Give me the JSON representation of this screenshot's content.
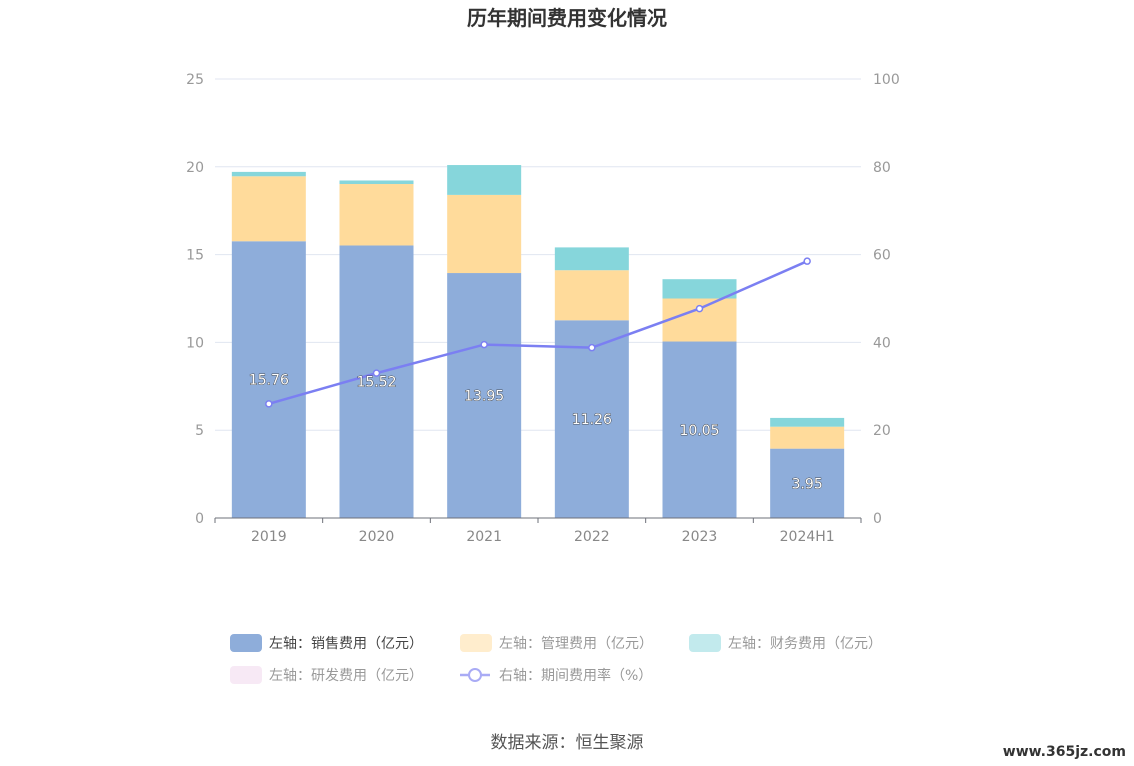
{
  "chart_data": {
    "type": "bar",
    "title": "历年期间费用变化情况",
    "categories": [
      "2019",
      "2020",
      "2021",
      "2022",
      "2023",
      "2024H1"
    ],
    "y_left": {
      "ylim": [
        0,
        25
      ],
      "ticks": [
        0,
        5,
        10,
        15,
        20,
        25
      ]
    },
    "y_right": {
      "ylim": [
        0,
        100
      ],
      "ticks": [
        0,
        20,
        40,
        60,
        80,
        100
      ]
    },
    "grid": true,
    "legend_position": "bottom",
    "series": [
      {
        "name": "左轴：销售费用（亿元）",
        "axis": "left",
        "stack": "cost",
        "color": "#8eadda",
        "values": [
          15.76,
          15.52,
          13.95,
          11.26,
          10.05,
          3.95
        ],
        "labels": [
          "15.76",
          "15.52",
          "13.95",
          "11.26",
          "10.05",
          "3.95"
        ]
      },
      {
        "name": "左轴：管理费用（亿元）",
        "axis": "left",
        "stack": "cost",
        "color": "#ffdb9b",
        "values": [
          3.7,
          3.5,
          4.45,
          2.85,
          2.45,
          1.25
        ]
      },
      {
        "name": "左轴：财务费用（亿元）",
        "axis": "left",
        "stack": "cost",
        "color": "#86d6db",
        "values": [
          0.25,
          0.2,
          1.7,
          1.3,
          1.1,
          0.5
        ]
      },
      {
        "name": "左轴：研发费用（亿元）",
        "axis": "left",
        "stack": "cost",
        "color": "#f0d4ec",
        "values": [
          0,
          0,
          0,
          0,
          0,
          0
        ]
      },
      {
        "name": "右轴：期间费用率（%）",
        "axis": "right",
        "type": "line",
        "color": "#7b7ff2",
        "values": [
          26,
          33,
          39.5,
          38.8,
          47.7,
          58.5
        ]
      }
    ]
  },
  "source": "数据来源：恒生聚源",
  "watermark": "www.365jz.com"
}
